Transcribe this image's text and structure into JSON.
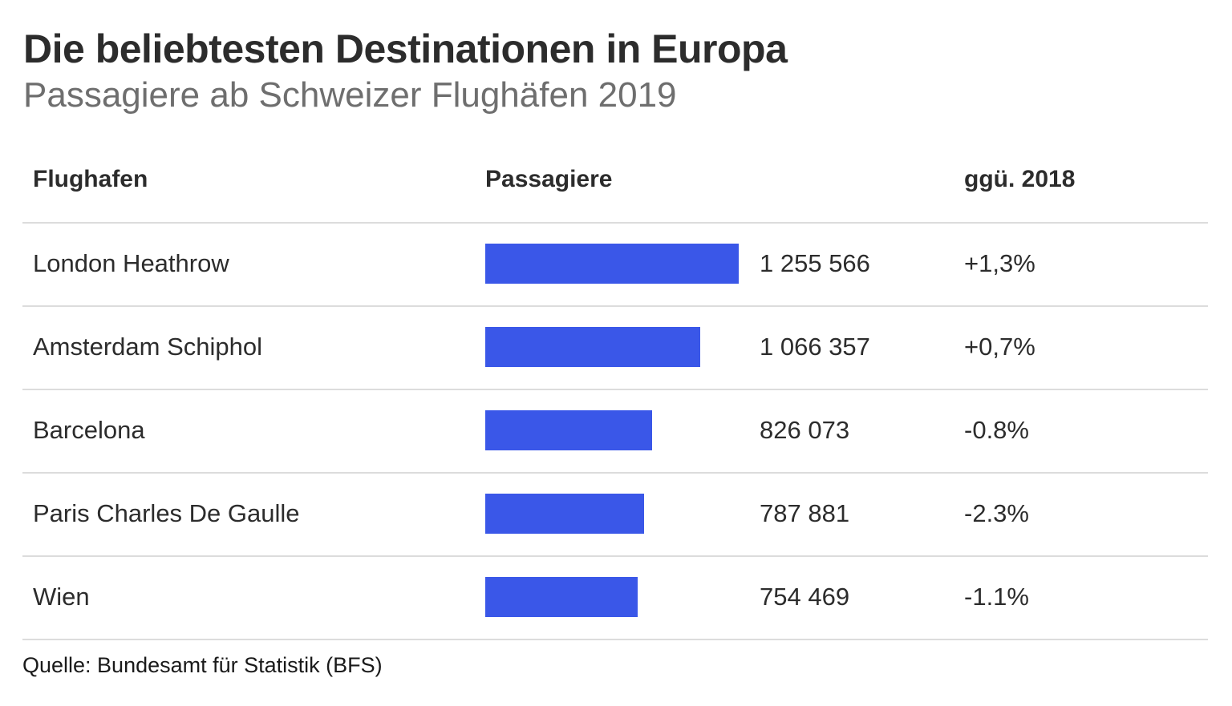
{
  "title": "Die beliebtesten Destinationen in Europa",
  "subtitle": "Passagiere ab Schweizer Flughäfen 2019",
  "source": "Quelle: Bundesamt für Statistik (BFS)",
  "colors": {
    "bar": "#3a57e8",
    "rule": "#dcdcdc"
  },
  "chart_data": {
    "type": "table",
    "title": "Die beliebtesten Destinationen in Europa",
    "subtitle": "Passagiere ab Schweizer Flughäfen 2019",
    "columns": [
      "Flughafen",
      "Passagiere",
      "ggü. 2018"
    ],
    "categories": [
      "London Heathrow",
      "Amsterdam Schiphol",
      "Barcelona",
      "Paris Charles De Gaulle",
      "Wien"
    ],
    "values": [
      1255566,
      1066357,
      826073,
      787881,
      754469
    ],
    "rows": [
      {
        "airport": "London Heathrow",
        "passengers": 1255566,
        "passengers_label": "1 255 566",
        "change": "+1,3%"
      },
      {
        "airport": "Amsterdam Schiphol",
        "passengers": 1066357,
        "passengers_label": "1 066 357",
        "change": "+0,7%"
      },
      {
        "airport": "Barcelona",
        "passengers": 826073,
        "passengers_label": "826 073",
        "change": "-0.8%"
      },
      {
        "airport": "Paris Charles De Gaulle",
        "passengers": 787881,
        "passengers_label": "787 881",
        "change": "-2.3%"
      },
      {
        "airport": "Wien",
        "passengers": 754469,
        "passengers_label": "754 469",
        "change": "-1.1%"
      }
    ],
    "bar_max": 1255566
  }
}
